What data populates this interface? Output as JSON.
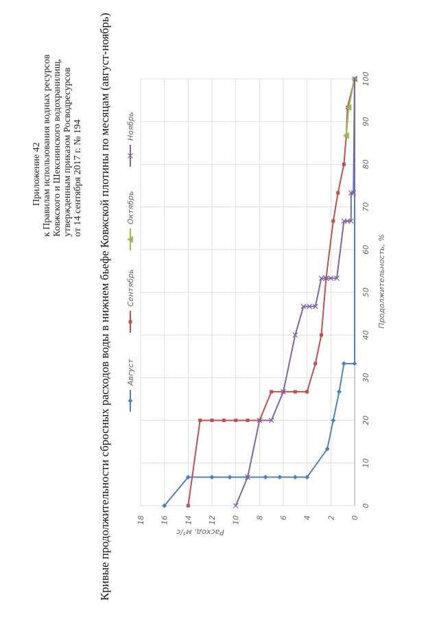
{
  "header": {
    "lines": [
      "Приложение 42",
      "к Правилам использования водных ресурсов",
      "Ковжского и Шекснинского водохранилищ,",
      "утвержденным приказом Росводресурсов",
      "от 14 сентября 2017 г. № 194"
    ]
  },
  "chart_data": {
    "type": "line",
    "title": "Кривые продолжительности сбросных расходов воды в нижнем бьефе Ковжской плотины по месяцам (август-ноябрь)",
    "x_label": "Продолжительность, %",
    "y_label": "Расход, м³/с",
    "xlim": [
      0,
      100
    ],
    "xticks": [
      0,
      10,
      20,
      30,
      40,
      50,
      60,
      70,
      80,
      90,
      100
    ],
    "ylim": [
      0,
      18
    ],
    "yticks": [
      0,
      2,
      4,
      6,
      8,
      10,
      12,
      14,
      16,
      18
    ],
    "grid": true,
    "legend": "top",
    "series": [
      {
        "name": "Август",
        "color": "#4f81bd",
        "marker": "diamond",
        "x": [
          0,
          6.7,
          6.7,
          6.7,
          6.7,
          6.7,
          6.7,
          6.7,
          6.7,
          13.3,
          20,
          26.7,
          33.3,
          33.3,
          100
        ],
        "values": [
          16,
          14,
          12,
          10.5,
          9,
          7.5,
          6.3,
          5,
          4,
          2.3,
          1.8,
          1.3,
          0.9,
          0,
          0
        ]
      },
      {
        "name": "Сентябрь",
        "color": "#c0504d",
        "marker": "square",
        "x": [
          0,
          20,
          20,
          20,
          20,
          20,
          20,
          26.7,
          26.7,
          26.7,
          26.7,
          33.3,
          40,
          53.3,
          66.7,
          73.3,
          80,
          86.7,
          93.3,
          100
        ],
        "values": [
          14,
          13,
          12,
          11,
          10,
          9,
          8,
          7,
          6,
          5,
          4,
          3.3,
          2.8,
          2.4,
          1.8,
          1.4,
          0.9,
          0.7,
          0.6,
          0
        ]
      },
      {
        "name": "Октябрь",
        "color": "#9bbb59",
        "marker": "triangle",
        "x": [
          86.7,
          93.3,
          100
        ],
        "values": [
          0.7,
          0.5,
          0
        ]
      },
      {
        "name": "Ноябрь",
        "color": "#8064a2",
        "marker": "x",
        "x": [
          0,
          6.7,
          20,
          20,
          26.7,
          40,
          46.7,
          46.7,
          46.7,
          53.3,
          53.3,
          53.3,
          53.3,
          66.7,
          66.7,
          66.7,
          73.3,
          73.3,
          100
        ],
        "values": [
          10,
          9,
          8,
          7,
          6,
          5,
          4.3,
          3.8,
          3.3,
          2.8,
          2.4,
          2,
          1.5,
          0.9,
          0.6,
          0.3,
          0.3,
          0.1,
          0
        ]
      }
    ]
  }
}
